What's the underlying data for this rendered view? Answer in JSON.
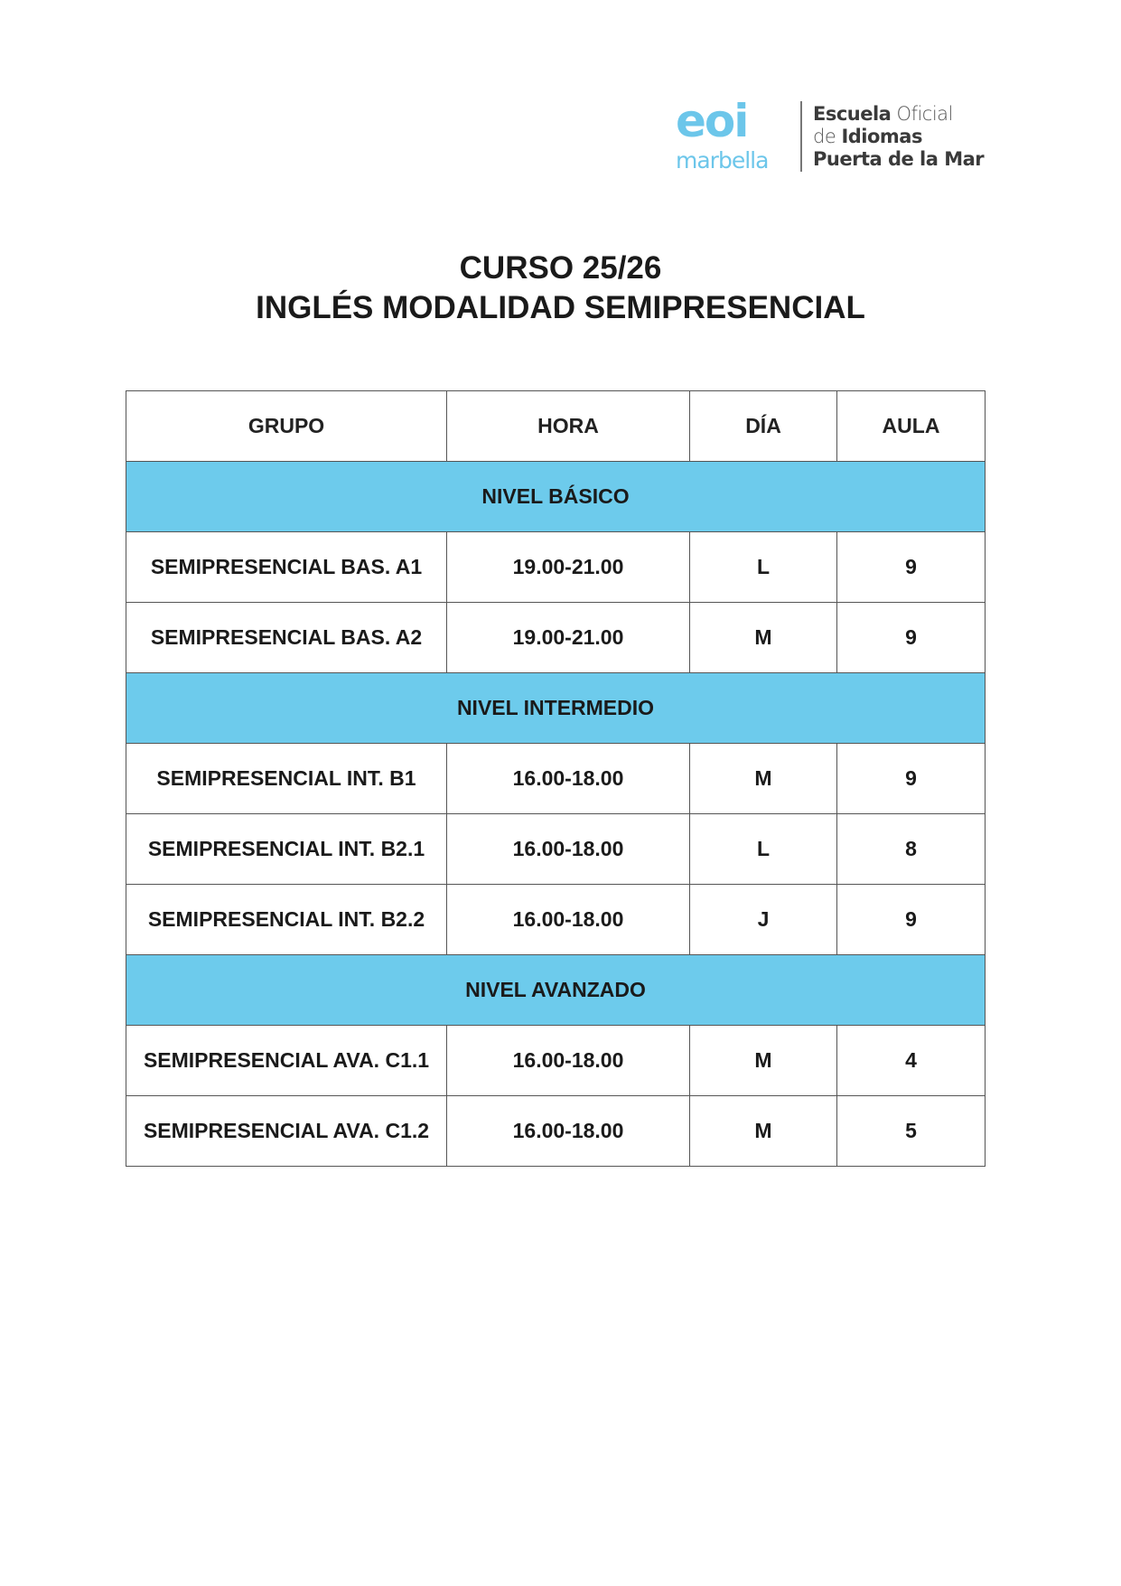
{
  "logo": {
    "mark": "eoi",
    "sub": "marbella",
    "line1_bold": "Escuela",
    "line1_light": "Oficial",
    "line2_light": "de",
    "line2_bold": "Idiomas",
    "line3": "Puerta de la Mar",
    "color": "#6cc6ea"
  },
  "title": {
    "line1": "CURSO 25/26",
    "line2": "INGLÉS MODALIDAD SEMIPRESENCIAL"
  },
  "table": {
    "headers": [
      "GRUPO",
      "HORA",
      "DÍA",
      "AULA"
    ],
    "section_color": "#6dcbec",
    "sections": [
      {
        "label": "NIVEL BÁSICO",
        "rows": [
          [
            "SEMIPRESENCIAL BAS. A1",
            "19.00-21.00",
            "L",
            "9"
          ],
          [
            "SEMIPRESENCIAL BAS. A2",
            "19.00-21.00",
            "M",
            "9"
          ]
        ]
      },
      {
        "label": "NIVEL INTERMEDIO",
        "rows": [
          [
            "SEMIPRESENCIAL INT. B1",
            "16.00-18.00",
            "M",
            "9"
          ],
          [
            "SEMIPRESENCIAL INT. B2.1",
            "16.00-18.00",
            "L",
            "8"
          ],
          [
            "SEMIPRESENCIAL INT. B2.2",
            "16.00-18.00",
            "J",
            "9"
          ]
        ]
      },
      {
        "label": "NIVEL AVANZADO",
        "rows": [
          [
            "SEMIPRESENCIAL AVA. C1.1",
            "16.00-18.00",
            "M",
            "4"
          ],
          [
            "SEMIPRESENCIAL AVA. C1.2",
            "16.00-18.00",
            "M",
            "5"
          ]
        ]
      }
    ]
  }
}
